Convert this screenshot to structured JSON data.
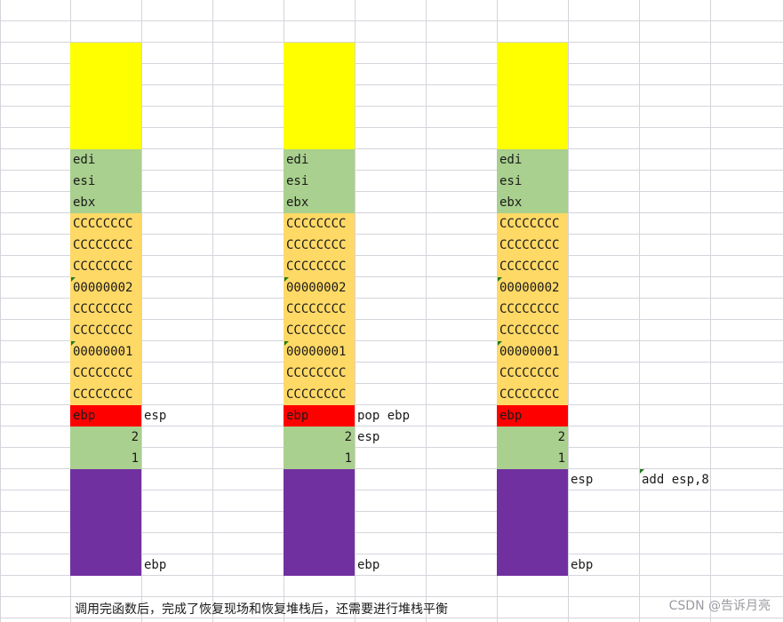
{
  "colors": {
    "top_block": "#ffff00",
    "saved_regs": "#a9d08e",
    "locals": "#ffd966",
    "ebp_cell": "#ff0000",
    "args": "#a9d08e",
    "caller_frame": "#7030a0",
    "grid": "#d4d4dc"
  },
  "stack_cells": [
    "edi",
    "esi",
    "ebx",
    "CCCCCCCC",
    "CCCCCCCC",
    "CCCCCCCC",
    "00000002",
    "CCCCCCCC",
    "CCCCCCCC",
    "00000001",
    "CCCCCCCC",
    "CCCCCCCC",
    "ebp"
  ],
  "arg_cells": [
    "2",
    "1"
  ],
  "annotations": {
    "col1_esp": "esp",
    "col1_ebp": "ebp",
    "col2_pop": "pop ebp",
    "col2_esp": "esp",
    "col2_ebp": "ebp",
    "col3_esp": "esp",
    "col3_add": "add esp,8",
    "col3_ebp": "ebp"
  },
  "note": "调用完函数后，完成了恢复现场和恢复堆栈后，还需要进行堆栈平衡",
  "watermark": "CSDN @告诉月亮"
}
